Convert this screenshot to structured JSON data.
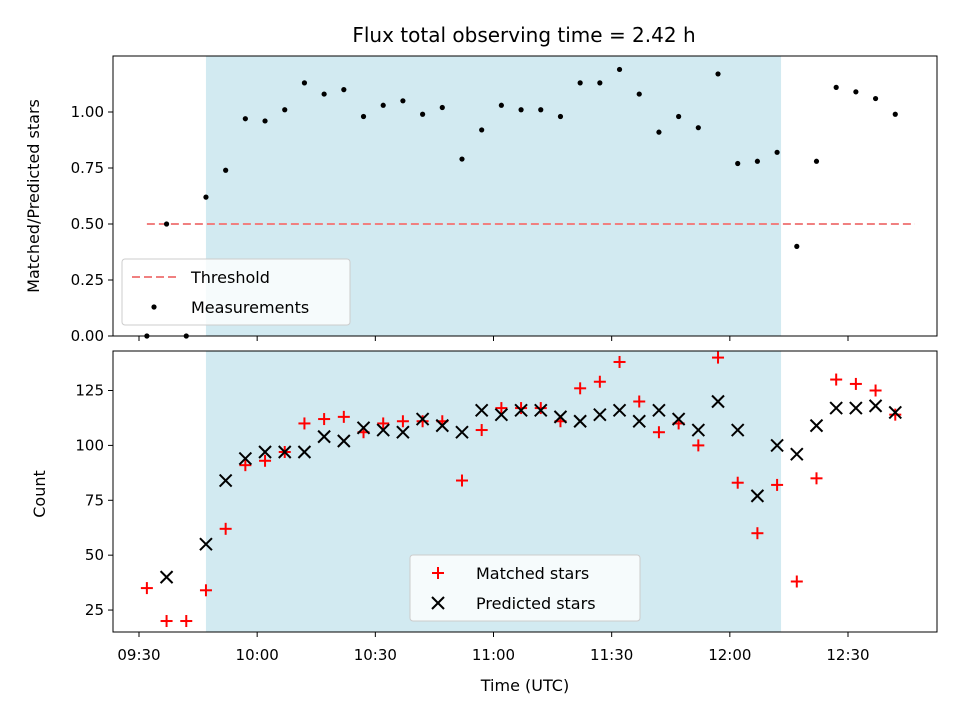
{
  "chart_data": {
    "type": "scatter",
    "title": "Flux total observing time = 2.42 h",
    "xlabel": "Time (UTC)",
    "x_ticks": [
      "09:30",
      "10:00",
      "10:30",
      "11:00",
      "11:30",
      "12:00",
      "12:30"
    ],
    "shaded_interval": {
      "start": "09:47",
      "end": "12:13",
      "color": "#add8e6"
    },
    "top_panel": {
      "ylabel": "Matched/Predicted stars",
      "ylim": [
        0,
        1.25
      ],
      "y_ticks": [
        "0.00",
        "0.25",
        "0.50",
        "0.75",
        "1.00"
      ],
      "legend_position": "lower-left",
      "threshold": {
        "name": "Threshold",
        "value": 0.5,
        "x_start": "09:32",
        "x_end": "12:47",
        "color": "#f08080"
      },
      "series": [
        {
          "name": "Measurements",
          "color": "#000000",
          "marker": "dot",
          "points": [
            [
              "09:32",
              0.0
            ],
            [
              "09:37",
              0.5
            ],
            [
              "09:42",
              0.0
            ],
            [
              "09:47",
              0.62
            ],
            [
              "09:52",
              0.74
            ],
            [
              "09:57",
              0.97
            ],
            [
              "10:02",
              0.96
            ],
            [
              "10:07",
              1.01
            ],
            [
              "10:12",
              1.13
            ],
            [
              "10:17",
              1.08
            ],
            [
              "10:22",
              1.1
            ],
            [
              "10:27",
              0.98
            ],
            [
              "10:32",
              1.03
            ],
            [
              "10:37",
              1.05
            ],
            [
              "10:42",
              0.99
            ],
            [
              "10:47",
              1.02
            ],
            [
              "10:52",
              0.79
            ],
            [
              "10:57",
              0.92
            ],
            [
              "11:02",
              1.03
            ],
            [
              "11:07",
              1.01
            ],
            [
              "11:12",
              1.01
            ],
            [
              "11:17",
              0.98
            ],
            [
              "11:22",
              1.13
            ],
            [
              "11:27",
              1.13
            ],
            [
              "11:32",
              1.19
            ],
            [
              "11:37",
              1.08
            ],
            [
              "11:42",
              0.91
            ],
            [
              "11:47",
              0.98
            ],
            [
              "11:52",
              0.93
            ],
            [
              "11:57",
              1.17
            ],
            [
              "12:02",
              0.77
            ],
            [
              "12:07",
              0.78
            ],
            [
              "12:12",
              0.82
            ],
            [
              "12:17",
              0.4
            ],
            [
              "12:22",
              0.78
            ],
            [
              "12:27",
              1.11
            ],
            [
              "12:32",
              1.09
            ],
            [
              "12:37",
              1.06
            ],
            [
              "12:42",
              0.99
            ]
          ]
        }
      ]
    },
    "bottom_panel": {
      "ylabel": "Count",
      "ylim": [
        15,
        143
      ],
      "y_ticks": [
        "25",
        "50",
        "75",
        "100",
        "125"
      ],
      "legend_position": "lower-center",
      "series": [
        {
          "name": "Matched stars",
          "color": "#ff0000",
          "marker": "plus",
          "points": [
            [
              "09:32",
              35
            ],
            [
              "09:37",
              20
            ],
            [
              "09:42",
              20
            ],
            [
              "09:47",
              34
            ],
            [
              "09:52",
              62
            ],
            [
              "09:57",
              91
            ],
            [
              "10:02",
              93
            ],
            [
              "10:07",
              97
            ],
            [
              "10:12",
              110
            ],
            [
              "10:17",
              112
            ],
            [
              "10:22",
              113
            ],
            [
              "10:27",
              106
            ],
            [
              "10:32",
              110
            ],
            [
              "10:37",
              111
            ],
            [
              "10:42",
              111
            ],
            [
              "10:47",
              111
            ],
            [
              "10:52",
              84
            ],
            [
              "10:57",
              107
            ],
            [
              "11:02",
              117
            ],
            [
              "11:07",
              117
            ],
            [
              "11:12",
              117
            ],
            [
              "11:17",
              111
            ],
            [
              "11:22",
              126
            ],
            [
              "11:27",
              129
            ],
            [
              "11:32",
              138
            ],
            [
              "11:37",
              120
            ],
            [
              "11:42",
              106
            ],
            [
              "11:47",
              110
            ],
            [
              "11:52",
              100
            ],
            [
              "11:57",
              140
            ],
            [
              "12:02",
              83
            ],
            [
              "12:07",
              60
            ],
            [
              "12:12",
              82
            ],
            [
              "12:17",
              38
            ],
            [
              "12:22",
              85
            ],
            [
              "12:27",
              130
            ],
            [
              "12:32",
              128
            ],
            [
              "12:37",
              125
            ],
            [
              "12:42",
              114
            ]
          ]
        },
        {
          "name": "Predicted stars",
          "color": "#000000",
          "marker": "x",
          "points": [
            [
              "09:37",
              40
            ],
            [
              "09:47",
              55
            ],
            [
              "09:52",
              84
            ],
            [
              "09:57",
              94
            ],
            [
              "10:02",
              97
            ],
            [
              "10:07",
              97
            ],
            [
              "10:12",
              97
            ],
            [
              "10:17",
              104
            ],
            [
              "10:22",
              102
            ],
            [
              "10:27",
              108
            ],
            [
              "10:32",
              107
            ],
            [
              "10:37",
              106
            ],
            [
              "10:42",
              112
            ],
            [
              "10:47",
              109
            ],
            [
              "10:52",
              106
            ],
            [
              "10:57",
              116
            ],
            [
              "11:02",
              114
            ],
            [
              "11:07",
              116
            ],
            [
              "11:12",
              116
            ],
            [
              "11:17",
              113
            ],
            [
              "11:22",
              111
            ],
            [
              "11:27",
              114
            ],
            [
              "11:32",
              116
            ],
            [
              "11:37",
              111
            ],
            [
              "11:42",
              116
            ],
            [
              "11:47",
              112
            ],
            [
              "11:52",
              107
            ],
            [
              "11:57",
              120
            ],
            [
              "12:02",
              107
            ],
            [
              "12:07",
              77
            ],
            [
              "12:12",
              100
            ],
            [
              "12:17",
              96
            ],
            [
              "12:22",
              109
            ],
            [
              "12:27",
              117
            ],
            [
              "12:32",
              117
            ],
            [
              "12:37",
              118
            ],
            [
              "12:42",
              115
            ]
          ]
        }
      ]
    }
  }
}
